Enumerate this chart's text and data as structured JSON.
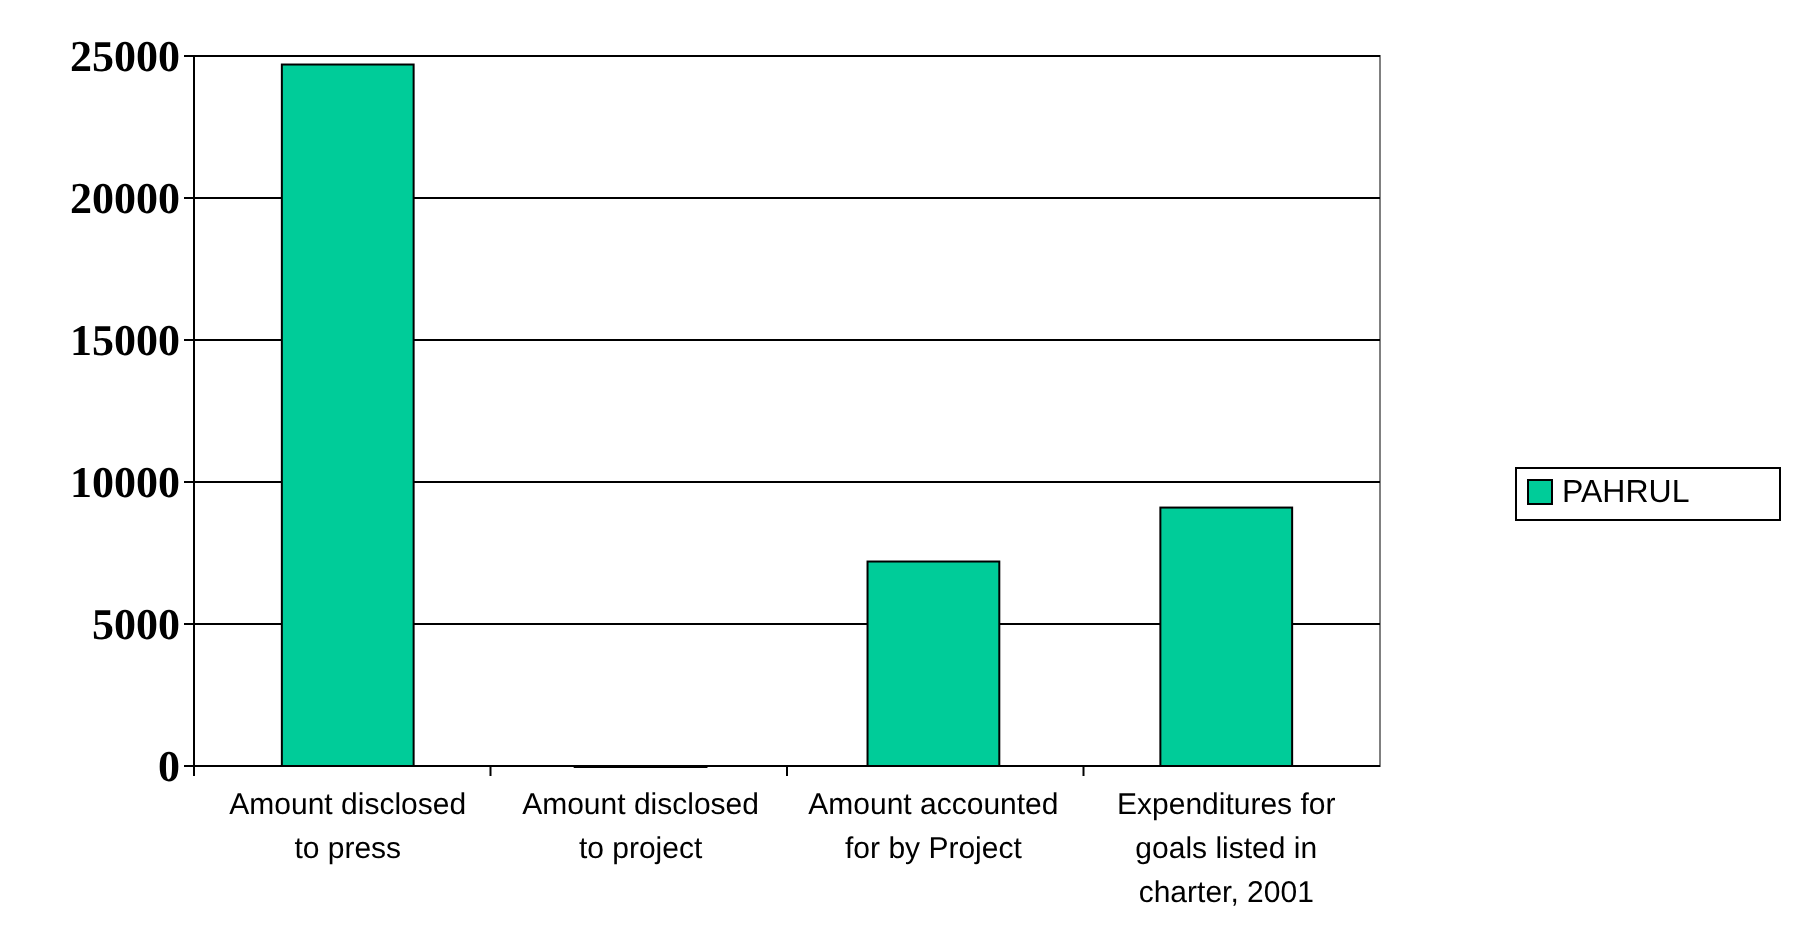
{
  "chart_data": {
    "type": "bar",
    "categories": [
      "Amount disclosed to press",
      "Amount disclosed to project",
      "Amount accounted for by Project",
      "Expenditures for goals listed in charter, 2001"
    ],
    "series": [
      {
        "name": "PAHRUL",
        "color": "#00cc99",
        "values": [
          24700,
          0,
          7200,
          9100
        ]
      }
    ],
    "ylim": [
      0,
      25000
    ],
    "yticks": [
      0,
      5000,
      10000,
      15000,
      20000,
      25000
    ],
    "grid": "y",
    "legend": "right"
  }
}
